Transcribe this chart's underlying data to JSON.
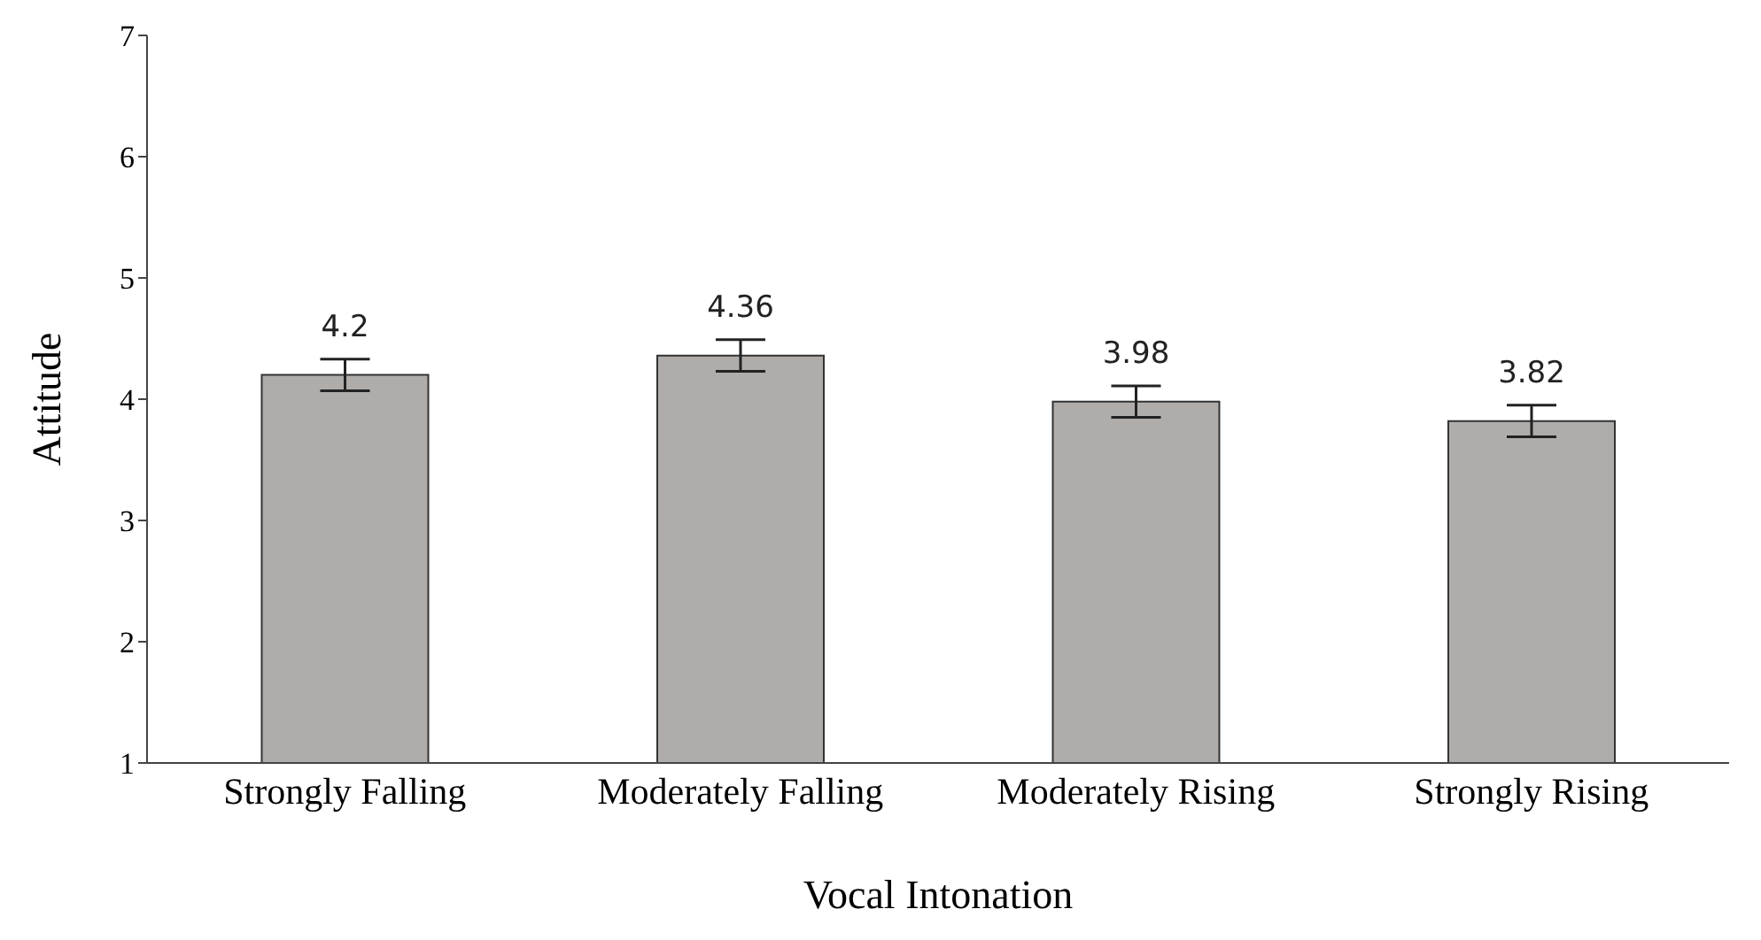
{
  "chart_data": {
    "type": "bar",
    "xlabel": "Vocal Intonation",
    "ylabel": "Attitude",
    "categories": [
      "Strongly Falling",
      "Moderately Falling",
      "Moderately Rising",
      "Strongly Rising"
    ],
    "values": [
      4.2,
      4.36,
      3.98,
      3.82
    ],
    "errors": [
      0.13,
      0.13,
      0.13,
      0.13
    ],
    "color": "#b0acaa",
    "ylim": [
      1,
      7
    ],
    "yticks": [
      1,
      2,
      3,
      4,
      5,
      6,
      7
    ],
    "data_labels": true,
    "grid": false,
    "legend": false
  }
}
